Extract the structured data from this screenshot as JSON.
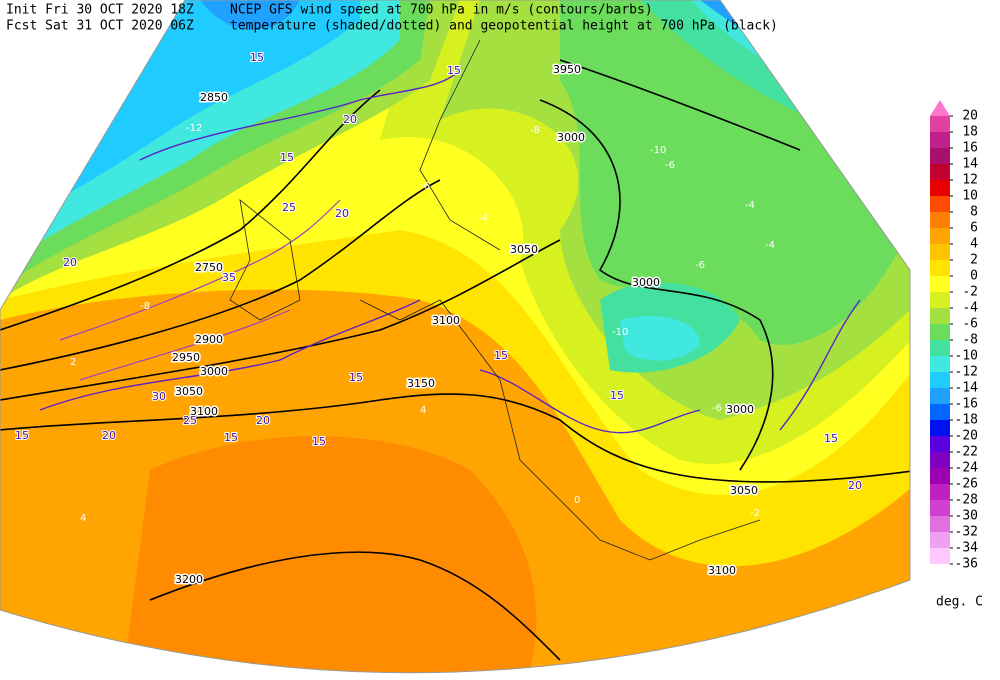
{
  "header": {
    "init": "Init  Fri 30 OCT 2020 18Z",
    "fcst": "Fcst Sat 31 OCT 2020 06Z",
    "title1": "NCEP GFS wind speed at 700 hPa in m/s (contours/barbs)",
    "title2": "temperature (shaded/dotted) and geopotential height at 700 hPa (black)"
  },
  "colorbar": {
    "ticks": [
      20,
      18,
      16,
      14,
      12,
      10,
      8,
      6,
      4,
      2,
      0,
      -2,
      -4,
      -6,
      -8,
      -10,
      -12,
      -14,
      -16,
      -18,
      -20,
      -22,
      -24,
      -26,
      -28,
      -30,
      -32,
      -34,
      -36
    ],
    "colors": [
      "#ff77cc",
      "#e040a0",
      "#c0208a",
      "#a8106c",
      "#c00030",
      "#e80000",
      "#ff4a00",
      "#ff8000",
      "#ffa400",
      "#ffc400",
      "#ffe400",
      "#ffff20",
      "#d6f020",
      "#a4e040",
      "#6cdc5c",
      "#44e0a0",
      "#40e8e0",
      "#20ccff",
      "#20a0ff",
      "#0066ff",
      "#0010f0",
      "#5a00e0",
      "#7e00c0",
      "#9c00b0",
      "#c020c0",
      "#d040d0",
      "#e070e0",
      "#f0a0f0",
      "#ffc8ff"
    ],
    "unit": "deg. C"
  },
  "contour_labels": {
    "height": [
      3950,
      3000,
      3050,
      3000,
      3100,
      3150,
      3000,
      3050,
      3100,
      2750,
      2850,
      2900,
      2950,
      3000,
      3050,
      3100,
      3200
    ],
    "wind": [
      15,
      15,
      20,
      15,
      25,
      20,
      35,
      15,
      20,
      15,
      15,
      20,
      20,
      15,
      15,
      15,
      15,
      20,
      30,
      25
    ],
    "temperature": [
      -8,
      -4,
      -6,
      -6,
      -4,
      -4,
      -10,
      -6,
      -8,
      4,
      2,
      4,
      0,
      -2,
      -6,
      -12,
      -10
    ]
  }
}
